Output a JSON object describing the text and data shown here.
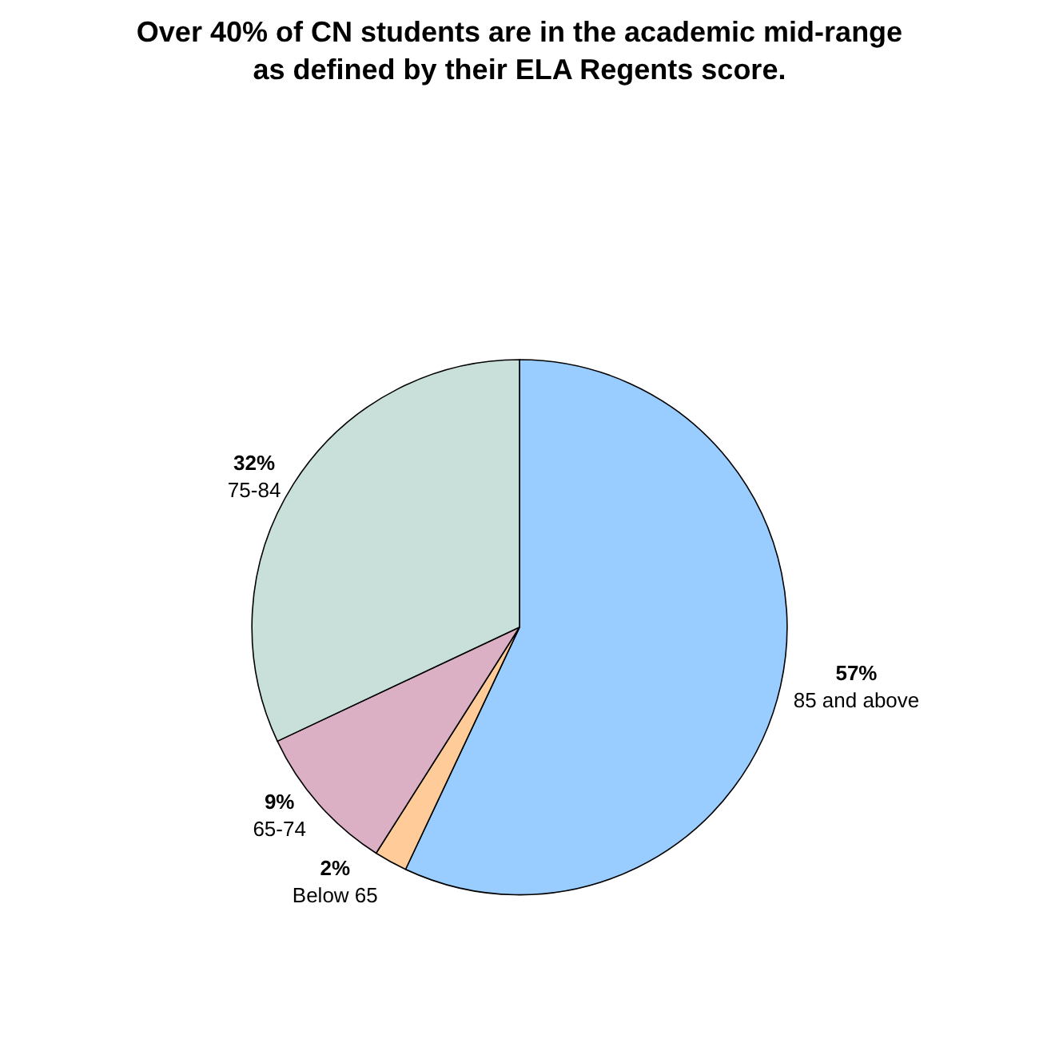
{
  "chart_data": {
    "type": "pie",
    "title": "Over 40% of CN students are in the academic mid-range\nas defined by their ELA Regents score.",
    "categories": [
      "85 and above",
      "Below 65",
      "65-74",
      "75-84"
    ],
    "values": [
      57,
      2,
      9,
      32
    ],
    "colors": [
      "#99ccff",
      "#ffcc99",
      "#dbb0c4",
      "#c9e0da"
    ],
    "value_labels": [
      "57%",
      "2%",
      "9%",
      "32%"
    ],
    "legend": false
  }
}
